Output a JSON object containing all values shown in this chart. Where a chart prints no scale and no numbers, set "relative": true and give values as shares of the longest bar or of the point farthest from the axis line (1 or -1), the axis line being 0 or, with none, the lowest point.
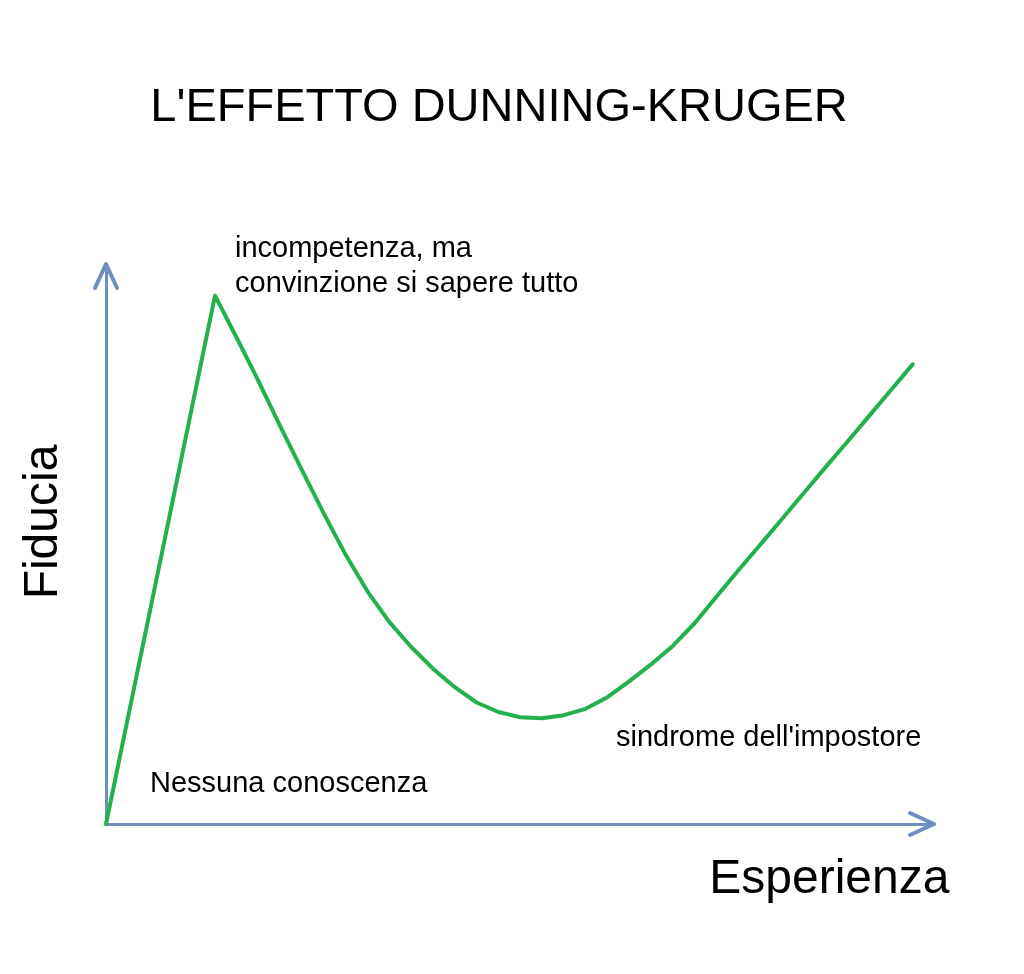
{
  "chart_data": {
    "type": "line",
    "title": "L'EFFETTO DUNNING-KRUGER",
    "xlabel": "Esperienza",
    "ylabel": "Fiducia",
    "annotations": [
      "incompetenza, ma\nconvinzione si sapere tutto",
      "Nessuna conoscenza",
      "sindrome dell'impostore"
    ],
    "relative": true,
    "marker": "none",
    "line_style": "solid",
    "categories": [
      null,
      null,
      null,
      null,
      null,
      null,
      null,
      null,
      null,
      null,
      null,
      null,
      null,
      null,
      null,
      null,
      null,
      null,
      null,
      null,
      null,
      null,
      null,
      null,
      null,
      null,
      null,
      null,
      null,
      null,
      null,
      null,
      null,
      null,
      null,
      null,
      null,
      null,
      null
    ],
    "series": [
      {
        "color": "#22b14c",
        "values": [
          0,
          0.2,
          0.4,
          0.6,
          0.8,
          1,
          0.92,
          0.838,
          0.752,
          0.669,
          0.587,
          0.509,
          0.44,
          0.382,
          0.335,
          0.294,
          0.259,
          0.23,
          0.212,
          0.202,
          0.2,
          0.206,
          0.218,
          0.24,
          0.27,
          0.302,
          0.337,
          0.38,
          0.43,
          0.48,
          0.528,
          0.577,
          0.626,
          0.675,
          0.723,
          0.772,
          0.821,
          0.87,
          null
        ]
      }
    ]
  }
}
